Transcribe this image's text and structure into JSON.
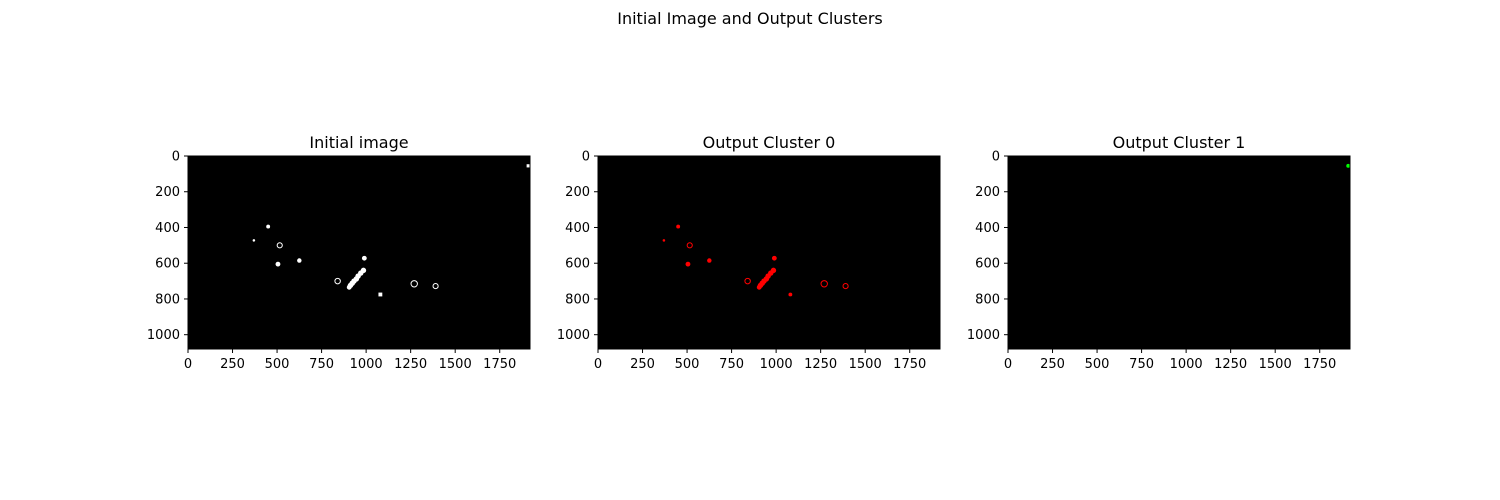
{
  "figure": {
    "suptitle": "Initial Image and Output Clusters"
  },
  "chart_data": [
    {
      "type": "scatter",
      "title": "Initial image",
      "background": "#000000",
      "xlim": [
        0,
        1920
      ],
      "ylim": [
        1080,
        0
      ],
      "xticks": [
        0,
        250,
        500,
        750,
        1000,
        1250,
        1500,
        1750
      ],
      "yticks": [
        0,
        200,
        400,
        600,
        800,
        1000
      ],
      "series": [
        {
          "color": "#ffffff",
          "points": [
            {
              "x": 1910,
              "y": 55,
              "r": 10,
              "shape": "square"
            },
            {
              "x": 450,
              "y": 395,
              "r": 12
            },
            {
              "x": 370,
              "y": 472,
              "r": 8
            },
            {
              "x": 515,
              "y": 500,
              "r": 16,
              "shape": "ring"
            },
            {
              "x": 505,
              "y": 605,
              "r": 15
            },
            {
              "x": 625,
              "y": 585,
              "r": 14
            },
            {
              "x": 990,
              "y": 572,
              "r": 15
            },
            {
              "x": 840,
              "y": 700,
              "r": 17,
              "shape": "ring"
            },
            {
              "x": 1270,
              "y": 715,
              "r": 20,
              "shape": "ring"
            },
            {
              "x": 1390,
              "y": 728,
              "r": 16,
              "shape": "ring"
            },
            {
              "x": 1080,
              "y": 775,
              "r": 12,
              "shape": "square"
            },
            {
              "x": 985,
              "y": 640,
              "r": 17
            },
            {
              "x": 970,
              "y": 655,
              "r": 17
            },
            {
              "x": 955,
              "y": 672,
              "r": 17
            },
            {
              "x": 945,
              "y": 688,
              "r": 17
            },
            {
              "x": 932,
              "y": 700,
              "r": 17
            },
            {
              "x": 922,
              "y": 712,
              "r": 17
            },
            {
              "x": 912,
              "y": 724,
              "r": 17
            },
            {
              "x": 905,
              "y": 735,
              "r": 15
            }
          ]
        }
      ]
    },
    {
      "type": "scatter",
      "title": "Output Cluster 0",
      "background": "#000000",
      "xlim": [
        0,
        1920
      ],
      "ylim": [
        1080,
        0
      ],
      "xticks": [
        0,
        250,
        500,
        750,
        1000,
        1250,
        1500,
        1750
      ],
      "yticks": [
        0,
        200,
        400,
        600,
        800,
        1000
      ],
      "series": [
        {
          "color": "#ff0000",
          "points": [
            {
              "x": 450,
              "y": 395,
              "r": 12
            },
            {
              "x": 370,
              "y": 472,
              "r": 8
            },
            {
              "x": 515,
              "y": 500,
              "r": 16,
              "shape": "ring"
            },
            {
              "x": 505,
              "y": 605,
              "r": 15
            },
            {
              "x": 625,
              "y": 585,
              "r": 14
            },
            {
              "x": 990,
              "y": 572,
              "r": 15
            },
            {
              "x": 840,
              "y": 700,
              "r": 17,
              "shape": "ring"
            },
            {
              "x": 1270,
              "y": 715,
              "r": 20,
              "shape": "ring"
            },
            {
              "x": 1390,
              "y": 728,
              "r": 16,
              "shape": "ring"
            },
            {
              "x": 1080,
              "y": 775,
              "r": 12
            },
            {
              "x": 985,
              "y": 640,
              "r": 17
            },
            {
              "x": 970,
              "y": 655,
              "r": 17
            },
            {
              "x": 955,
              "y": 672,
              "r": 17
            },
            {
              "x": 945,
              "y": 688,
              "r": 17
            },
            {
              "x": 932,
              "y": 700,
              "r": 17
            },
            {
              "x": 922,
              "y": 712,
              "r": 17
            },
            {
              "x": 912,
              "y": 724,
              "r": 17
            },
            {
              "x": 905,
              "y": 735,
              "r": 15
            }
          ]
        }
      ]
    },
    {
      "type": "scatter",
      "title": "Output Cluster 1",
      "background": "#000000",
      "xlim": [
        0,
        1920
      ],
      "ylim": [
        1080,
        0
      ],
      "xticks": [
        0,
        250,
        500,
        750,
        1000,
        1250,
        1500,
        1750
      ],
      "yticks": [
        0,
        200,
        400,
        600,
        800,
        1000
      ],
      "series": [
        {
          "color": "#00ff00",
          "points": [
            {
              "x": 1910,
              "y": 55,
              "r": 12
            }
          ]
        }
      ]
    }
  ]
}
